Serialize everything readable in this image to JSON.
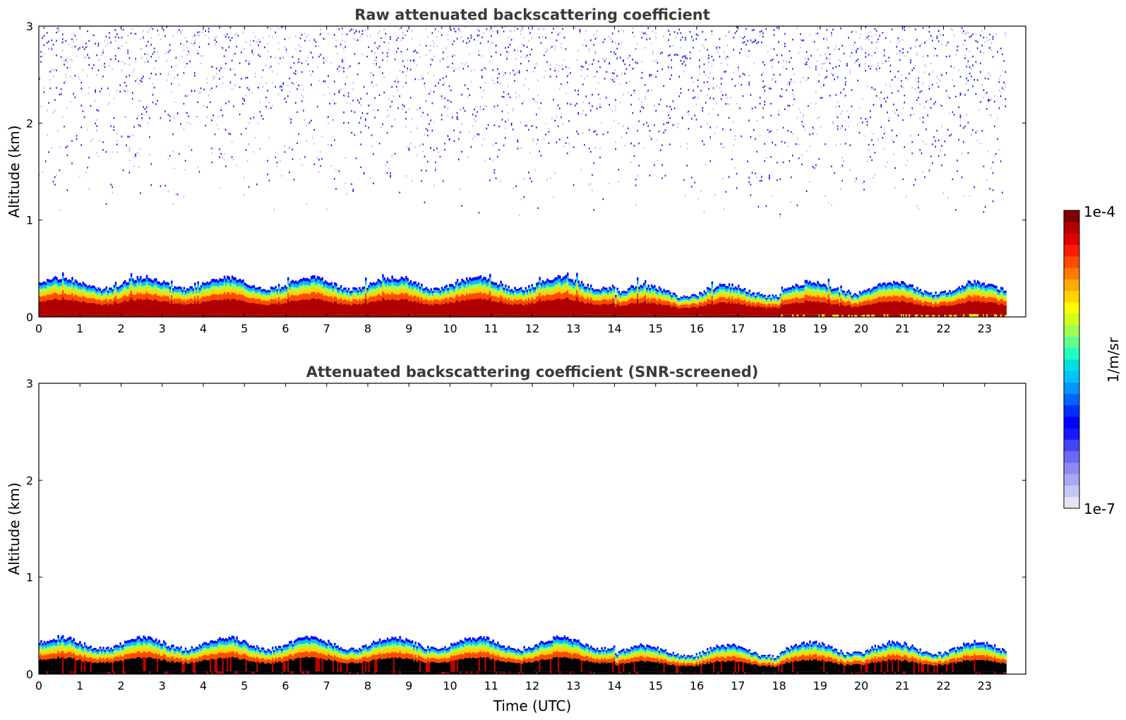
{
  "chart_data": [
    {
      "type": "heatmap",
      "title": "Raw attenuated backscattering coefficient",
      "xlabel": "",
      "ylabel": "Altitude (km)",
      "xlim": [
        0,
        24
      ],
      "ylim": [
        0,
        3
      ],
      "xticks": [
        0,
        1,
        2,
        3,
        4,
        5,
        6,
        7,
        8,
        9,
        10,
        11,
        12,
        13,
        14,
        15,
        16,
        17,
        18,
        19,
        20,
        21,
        22,
        23
      ],
      "xtick_labels": [
        "0",
        "1",
        "2",
        "3",
        "4",
        "5",
        "6",
        "7",
        "8",
        "9",
        "10",
        "11",
        "12",
        "13",
        "14",
        "15",
        "16",
        "17",
        "18",
        "19",
        "20",
        "21",
        "22",
        "23"
      ],
      "yticks": [
        0,
        1,
        2,
        3
      ],
      "ytick_labels": [
        "0",
        "1",
        "2",
        "3"
      ],
      "data_extent_hours": 23.5,
      "description_values": {
        "boundary_layer_top_km": 0.35,
        "noise_region_km": [
          1.0,
          3.0
        ]
      }
    },
    {
      "type": "heatmap",
      "title": "Attenuated backscattering coefficient (SNR-screened)",
      "xlabel": "Time (UTC)",
      "ylabel": "Altitude (km)",
      "xlim": [
        0,
        24
      ],
      "ylim": [
        0,
        3
      ],
      "xticks": [
        0,
        1,
        2,
        3,
        4,
        5,
        6,
        7,
        8,
        9,
        10,
        11,
        12,
        13,
        14,
        15,
        16,
        17,
        18,
        19,
        20,
        21,
        22,
        23
      ],
      "xtick_labels": [
        "0",
        "1",
        "2",
        "3",
        "4",
        "5",
        "6",
        "7",
        "8",
        "9",
        "10",
        "11",
        "12",
        "13",
        "14",
        "15",
        "16",
        "17",
        "18",
        "19",
        "20",
        "21",
        "22",
        "23"
      ],
      "yticks": [
        0,
        1,
        2,
        3
      ],
      "ytick_labels": [
        "0",
        "1",
        "2",
        "3"
      ],
      "data_extent_hours": 23.5,
      "description_values": {
        "boundary_layer_top_km": 0.32
      }
    }
  ],
  "colorbar": {
    "label": "1/m/sr",
    "max_label": "1e-4",
    "min_label": "1e-7",
    "colors": [
      "#e4e4f6",
      "#c6c6f4",
      "#a8a8f0",
      "#8a8af0",
      "#6a6af4",
      "#4444f6",
      "#1818fa",
      "#0000ff",
      "#0030ff",
      "#0064ff",
      "#0096ff",
      "#00c2ff",
      "#00e0e0",
      "#20ffc0",
      "#60ff90",
      "#a0ff50",
      "#d0ff20",
      "#ffff00",
      "#ffd400",
      "#ffaa00",
      "#ff7a00",
      "#ff4a00",
      "#ff1a00",
      "#e00000",
      "#b00000",
      "#800000"
    ]
  }
}
